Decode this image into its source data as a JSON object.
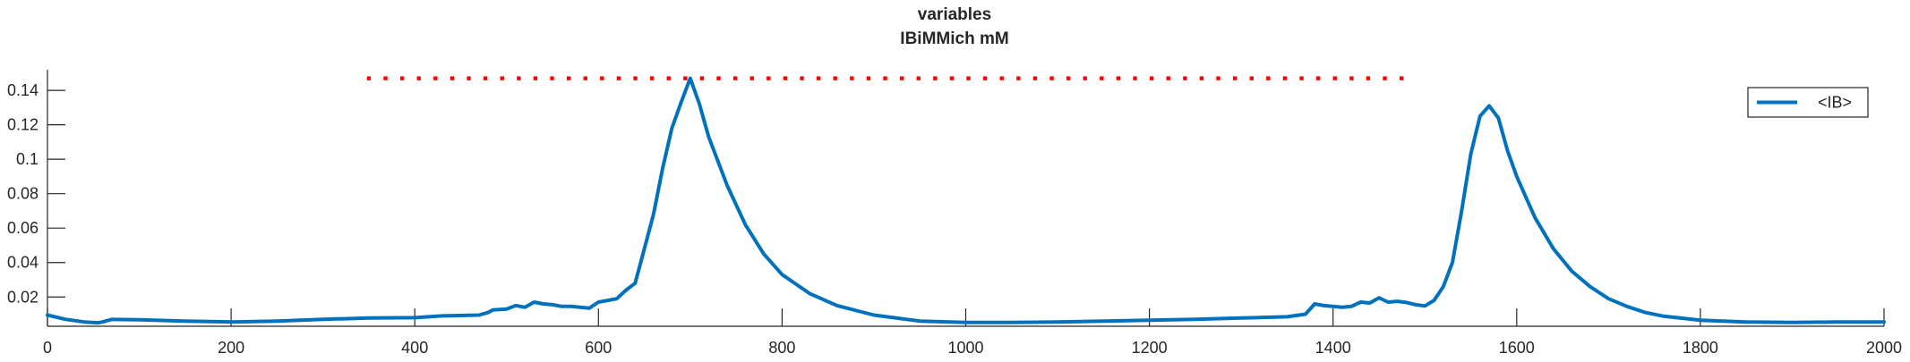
{
  "chart_data": {
    "type": "line",
    "title": "variables",
    "subtitle": "IBiMMich mM",
    "xlabel": "",
    "ylabel": "",
    "xlim": [
      0,
      2000
    ],
    "ylim": [
      0.003,
      0.152
    ],
    "x_ticks": [
      0,
      200,
      400,
      600,
      800,
      1000,
      1200,
      1400,
      1600,
      1800,
      2000
    ],
    "x_tick_labels": [
      "0",
      "200",
      "400",
      "600",
      "800",
      "1000",
      "1200",
      "1400",
      "1600",
      "1800",
      "2000"
    ],
    "y_ticks": [
      0.02,
      0.04,
      0.06,
      0.08,
      0.1,
      0.12,
      0.14
    ],
    "y_tick_labels": [
      "0.02",
      "0.04",
      "0.06",
      "0.08",
      "0.1",
      "0.12",
      "0.14"
    ],
    "grid": false,
    "legend": {
      "placement": "top-right",
      "entries": [
        "<IB>"
      ]
    },
    "series": [
      {
        "name": "<IB>",
        "color": "#0072BD",
        "x": [
          0,
          20,
          40,
          55,
          60,
          70,
          100,
          150,
          200,
          250,
          300,
          350,
          400,
          430,
          470,
          480,
          485,
          500,
          510,
          520,
          530,
          540,
          550,
          560,
          570,
          580,
          590,
          600,
          610,
          620,
          630,
          640,
          650,
          660,
          670,
          680,
          690,
          700,
          710,
          720,
          740,
          760,
          780,
          800,
          830,
          860,
          900,
          950,
          1000,
          1050,
          1100,
          1150,
          1200,
          1250,
          1300,
          1350,
          1370,
          1380,
          1390,
          1410,
          1420,
          1430,
          1440,
          1450,
          1460,
          1470,
          1480,
          1490,
          1500,
          1510,
          1520,
          1530,
          1540,
          1550,
          1560,
          1570,
          1580,
          1590,
          1600,
          1620,
          1640,
          1660,
          1680,
          1700,
          1720,
          1740,
          1760,
          1800,
          1850,
          1900,
          1950,
          2000
        ],
        "y": [
          0.0095,
          0.007,
          0.0055,
          0.005,
          0.0055,
          0.007,
          0.0068,
          0.006,
          0.0055,
          0.006,
          0.007,
          0.0078,
          0.008,
          0.009,
          0.0095,
          0.011,
          0.0125,
          0.013,
          0.015,
          0.014,
          0.017,
          0.016,
          0.0155,
          0.0145,
          0.0145,
          0.014,
          0.0135,
          0.017,
          0.018,
          0.019,
          0.024,
          0.028,
          0.048,
          0.068,
          0.095,
          0.118,
          0.133,
          0.147,
          0.132,
          0.113,
          0.085,
          0.062,
          0.045,
          0.033,
          0.022,
          0.015,
          0.0095,
          0.006,
          0.0052,
          0.0052,
          0.0055,
          0.006,
          0.0065,
          0.007,
          0.0078,
          0.0085,
          0.01,
          0.016,
          0.015,
          0.014,
          0.0145,
          0.017,
          0.0165,
          0.0195,
          0.017,
          0.0175,
          0.0168,
          0.0155,
          0.0148,
          0.018,
          0.026,
          0.04,
          0.07,
          0.103,
          0.125,
          0.131,
          0.124,
          0.105,
          0.09,
          0.066,
          0.048,
          0.035,
          0.026,
          0.019,
          0.0145,
          0.011,
          0.0088,
          0.0065,
          0.0055,
          0.0052,
          0.0055,
          0.0055
        ]
      },
      {
        "name": "",
        "color": "#FF0000",
        "style": "dotted",
        "x": [
          350,
          1480
        ],
        "y": [
          0.147,
          0.147
        ]
      }
    ]
  }
}
